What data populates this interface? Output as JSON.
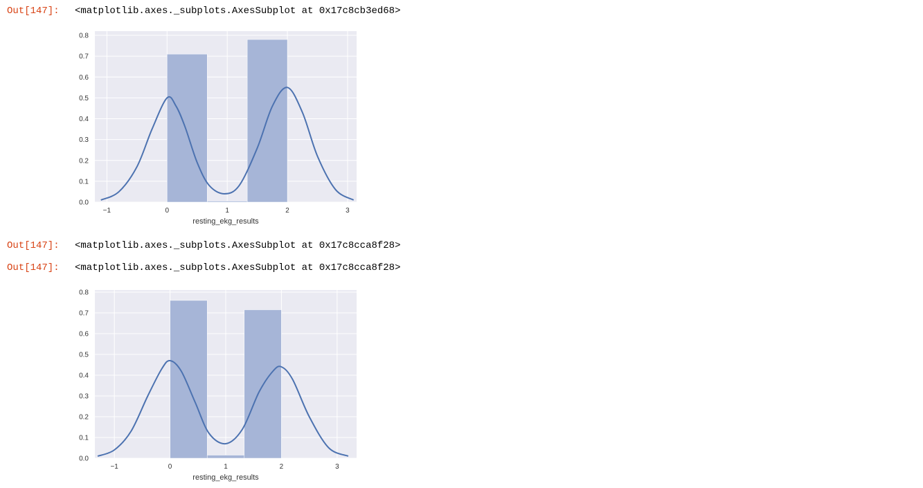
{
  "outputs": [
    {
      "prompt": "Out[147]:",
      "text": "<matplotlib.axes._subplots.AxesSubplot at 0x17c8cb3ed68>"
    },
    {
      "prompt": "Out[147]:",
      "text": "<matplotlib.axes._subplots.AxesSubplot at 0x17c8cca8f28>"
    },
    {
      "prompt": "Out[147]:",
      "text": "<matplotlib.axes._subplots.AxesSubplot at 0x17c8cca8f28>"
    }
  ],
  "colors": {
    "axes_bg": "#eaeaf2",
    "grid": "#ffffff",
    "bar": "#a6b5d7",
    "kde": "#4c72b0",
    "prompt": "#d84315"
  },
  "chart_data": [
    {
      "type": "bar",
      "overlay": "kde-line",
      "xlabel": "resting_ekg_results",
      "ylabel": "",
      "xlim": [
        -1.2,
        3.15
      ],
      "ylim": [
        0,
        0.82
      ],
      "xticks": [
        "−1",
        "0",
        "1",
        "2",
        "3"
      ],
      "yticks": [
        "0.0",
        "0.1",
        "0.2",
        "0.3",
        "0.4",
        "0.5",
        "0.6",
        "0.7",
        "0.8"
      ],
      "grid": true,
      "bins": [
        {
          "start": 0.0,
          "end": 0.667,
          "value": 0.71
        },
        {
          "start": 0.667,
          "end": 1.333,
          "value": 0.005
        },
        {
          "start": 1.333,
          "end": 2.0,
          "value": 0.78
        }
      ],
      "kde": [
        {
          "x": -1.1,
          "y": 0.01
        },
        {
          "x": -0.8,
          "y": 0.05
        },
        {
          "x": -0.5,
          "y": 0.17
        },
        {
          "x": -0.25,
          "y": 0.35
        },
        {
          "x": 0.0,
          "y": 0.5
        },
        {
          "x": 0.15,
          "y": 0.46
        },
        {
          "x": 0.3,
          "y": 0.36
        },
        {
          "x": 0.5,
          "y": 0.19
        },
        {
          "x": 0.7,
          "y": 0.08
        },
        {
          "x": 0.95,
          "y": 0.04
        },
        {
          "x": 1.2,
          "y": 0.08
        },
        {
          "x": 1.5,
          "y": 0.26
        },
        {
          "x": 1.75,
          "y": 0.46
        },
        {
          "x": 2.0,
          "y": 0.55
        },
        {
          "x": 2.25,
          "y": 0.43
        },
        {
          "x": 2.5,
          "y": 0.22
        },
        {
          "x": 2.8,
          "y": 0.06
        },
        {
          "x": 3.1,
          "y": 0.01
        }
      ]
    },
    {
      "type": "bar",
      "overlay": "kde-line",
      "xlabel": "resting_ekg_results",
      "ylabel": "",
      "xlim": [
        -1.35,
        3.35
      ],
      "ylim": [
        0,
        0.81
      ],
      "xticks": [
        "−1",
        "0",
        "1",
        "2",
        "3"
      ],
      "yticks": [
        "0.0",
        "0.1",
        "0.2",
        "0.3",
        "0.4",
        "0.5",
        "0.6",
        "0.7",
        "0.8"
      ],
      "grid": true,
      "bins": [
        {
          "start": 0.0,
          "end": 0.667,
          "value": 0.76
        },
        {
          "start": 0.667,
          "end": 1.333,
          "value": 0.015
        },
        {
          "start": 1.333,
          "end": 2.0,
          "value": 0.715
        }
      ],
      "kde": [
        {
          "x": -1.3,
          "y": 0.01
        },
        {
          "x": -1.0,
          "y": 0.04
        },
        {
          "x": -0.7,
          "y": 0.13
        },
        {
          "x": -0.4,
          "y": 0.3
        },
        {
          "x": -0.15,
          "y": 0.43
        },
        {
          "x": 0.0,
          "y": 0.47
        },
        {
          "x": 0.2,
          "y": 0.42
        },
        {
          "x": 0.45,
          "y": 0.27
        },
        {
          "x": 0.7,
          "y": 0.12
        },
        {
          "x": 1.0,
          "y": 0.07
        },
        {
          "x": 1.3,
          "y": 0.14
        },
        {
          "x": 1.6,
          "y": 0.32
        },
        {
          "x": 1.85,
          "y": 0.42
        },
        {
          "x": 2.0,
          "y": 0.44
        },
        {
          "x": 2.2,
          "y": 0.38
        },
        {
          "x": 2.5,
          "y": 0.2
        },
        {
          "x": 2.85,
          "y": 0.05
        },
        {
          "x": 3.2,
          "y": 0.01
        }
      ]
    }
  ]
}
